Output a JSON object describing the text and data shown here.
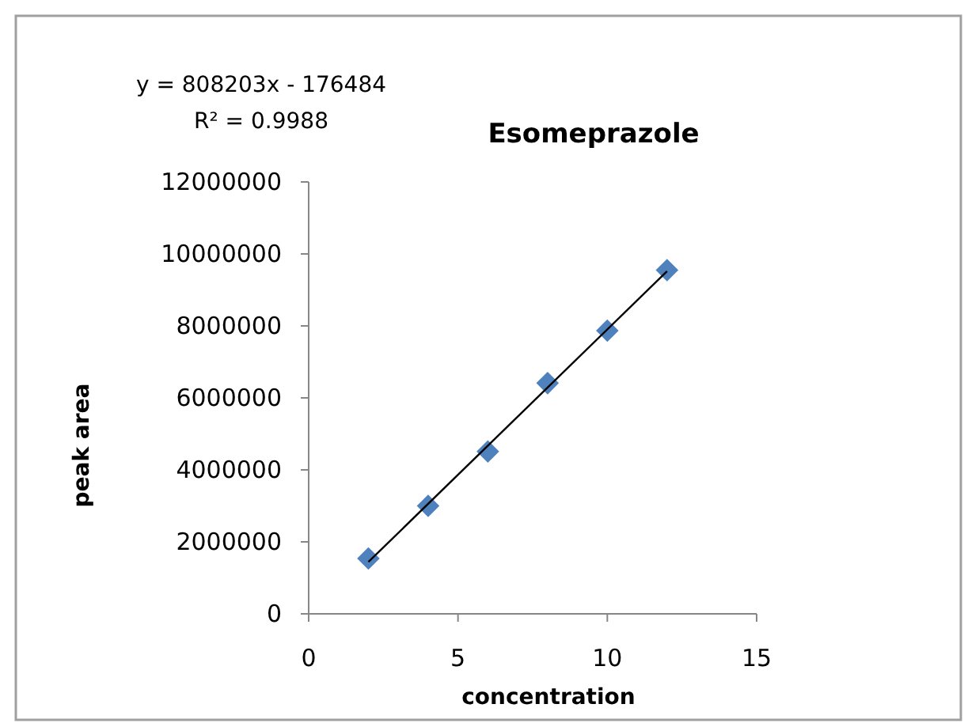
{
  "chart_data": {
    "type": "scatter",
    "title": "Esomeprazole",
    "xlabel": "concentration",
    "ylabel": "peak area",
    "annotations": [
      "y = 808203x - 176484",
      "R² = 0.9988"
    ],
    "xlim": [
      0,
      15
    ],
    "xticks": [
      0,
      5,
      10,
      15
    ],
    "ylim": [
      0,
      12000000
    ],
    "yticks": [
      0,
      2000000,
      4000000,
      6000000,
      8000000,
      10000000,
      12000000
    ],
    "grid": false,
    "marker": "diamond",
    "series": [
      {
        "color": "#4f81bd",
        "x": [
          2,
          4,
          6,
          8,
          10,
          12
        ],
        "values": [
          1540000,
          3000000,
          4510000,
          6410000,
          7870000,
          9550000
        ]
      },
      {
        "type": "line",
        "color": "#000000",
        "x": [
          2,
          12
        ],
        "values": [
          1440000,
          9520000
        ],
        "marker": "none",
        "line_style": "solid"
      }
    ]
  }
}
